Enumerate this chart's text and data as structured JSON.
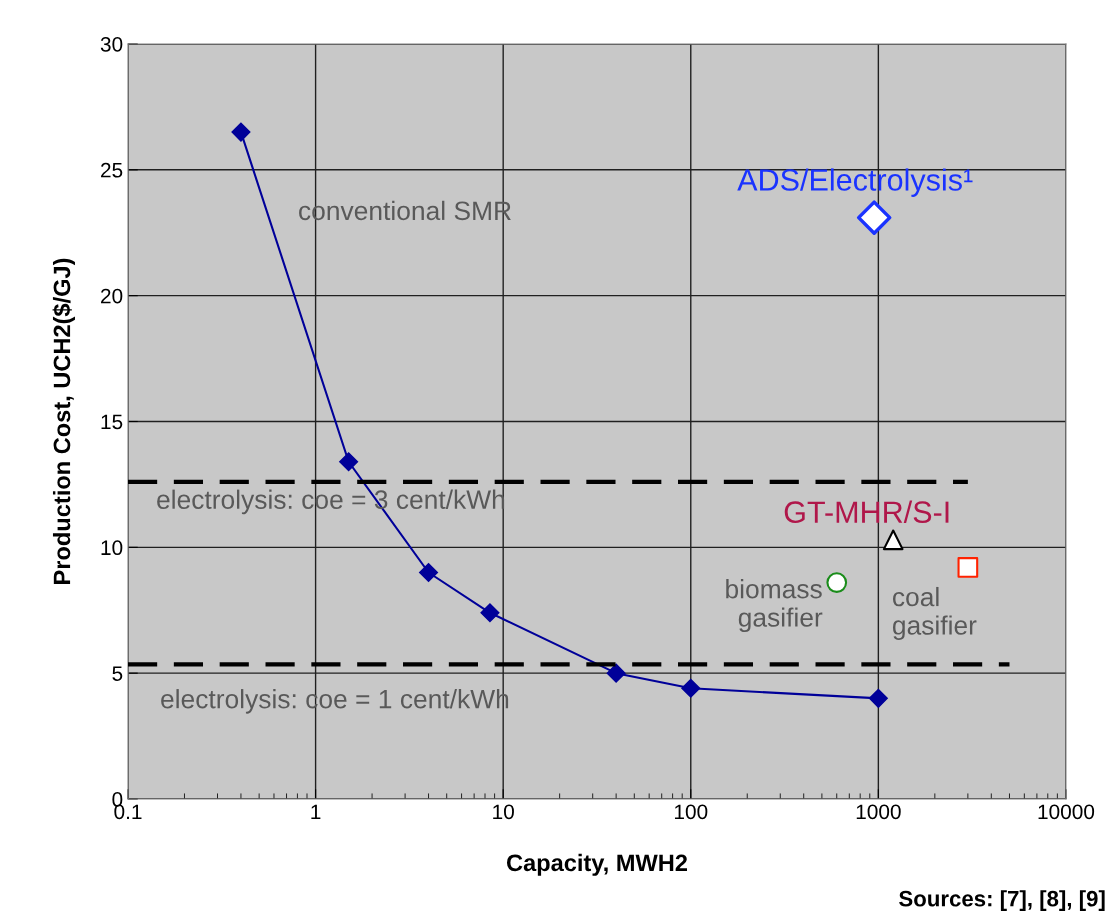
{
  "chart_data": {
    "type": "line",
    "xlabel": "Capacity, MWH2",
    "ylabel": "Production Cost, UCH2($/GJ)",
    "log": "x",
    "xlim": [
      0.1,
      10000
    ],
    "xticks": [
      0.1,
      1,
      10,
      100,
      1000,
      10000
    ],
    "ylim": [
      0,
      30
    ],
    "yticks": [
      0,
      5,
      10,
      15,
      20,
      25,
      30
    ],
    "grid": true,
    "legend": false,
    "series": [
      {
        "name": "conventional SMR",
        "color": "#000099",
        "marker": "diamond",
        "line_style": "solid",
        "x": [
          0.4,
          1.5,
          4,
          8.5,
          40,
          100,
          1000
        ],
        "values": [
          26.5,
          13.4,
          9.0,
          7.4,
          5.0,
          4.4,
          4.0
        ]
      },
      {
        "name": "ADS/Electrolysis¹",
        "type": "scatter",
        "color": "#1a33ff",
        "marker": "diamond",
        "x": [
          950
        ],
        "values": [
          23.1
        ]
      },
      {
        "name": "GT-MHR/S-I",
        "type": "scatter",
        "color": "#000000",
        "marker": "triangle",
        "x": [
          1200
        ],
        "values": [
          10.3
        ]
      },
      {
        "name": "biomass\ngasifier",
        "type": "scatter",
        "color": "#1a8c1a",
        "marker": "circle",
        "x": [
          600
        ],
        "values": [
          8.6
        ]
      },
      {
        "name": "coal\ngasifier",
        "type": "scatter",
        "color": "#ff2200",
        "marker": "square",
        "x": [
          3000
        ],
        "values": [
          9.2
        ]
      },
      {
        "name": "electrolysis: coe = 3 cent/kWh",
        "color": "#000000",
        "marker": "none",
        "line_style": "dashed",
        "x": [
          0.1,
          3000
        ],
        "values": [
          12.6,
          12.6
        ]
      },
      {
        "name": "electrolysis: coe = 1 cent/kWh",
        "color": "#000000",
        "marker": "none",
        "line_style": "dashed",
        "x": [
          0.1,
          5000
        ],
        "values": [
          5.35,
          5.35
        ]
      }
    ],
    "annotations": [
      "Sources: [7], [8], [9]"
    ]
  }
}
